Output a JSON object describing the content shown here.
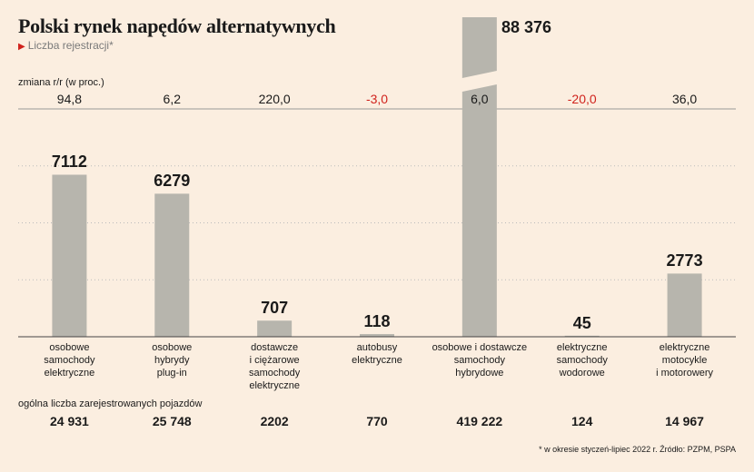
{
  "header": {
    "title": "Polski rynek napędów alternatywnych",
    "subtitle": "Liczba rejestracji*"
  },
  "yoy_label": "zmiana r/r (w proc.)",
  "totals_label": "ogólna liczba zarejestrowanych pojazdów",
  "footnote": "* w okresie styczeń-lipiec 2022 r. Źródło: PZPM, PSPA",
  "colors": {
    "bar": "#b7b5ad",
    "negative": "#d0221c",
    "grid": "#bbbbbb",
    "background": "#fbeee0"
  },
  "chart_data": {
    "type": "bar",
    "categories": [
      "osobowe\nsamochody\nelektryczne",
      "osobowe\nhybrydy\nplug-in",
      "dostawcze\ni ciężarowe\nsamochody\nelektryczne",
      "autobusy\nelektryczne",
      "osobowe i dostawcze\nsamochody\nhybrydowe",
      "elektryczne\nsamochody\nwodorowe",
      "elektryczne\nmotocykle\ni motorowery"
    ],
    "values": [
      7112,
      6279,
      707,
      118,
      88376,
      45,
      2773
    ],
    "value_labels": [
      "7112",
      "6279",
      "707",
      "118",
      "88 376",
      "45",
      "2773"
    ],
    "yoy_change": [
      "94,8",
      "6,2",
      "220,0",
      "-3,0",
      "6,0",
      "-20,0",
      "36,0"
    ],
    "yoy_negative": [
      false,
      false,
      false,
      true,
      false,
      true,
      false
    ],
    "totals": [
      "24 931",
      "25 748",
      "2202",
      "770",
      "419 222",
      "124",
      "14 967"
    ],
    "broken_bar_index": 4,
    "ylim": [
      0,
      10000
    ],
    "grid": true
  }
}
